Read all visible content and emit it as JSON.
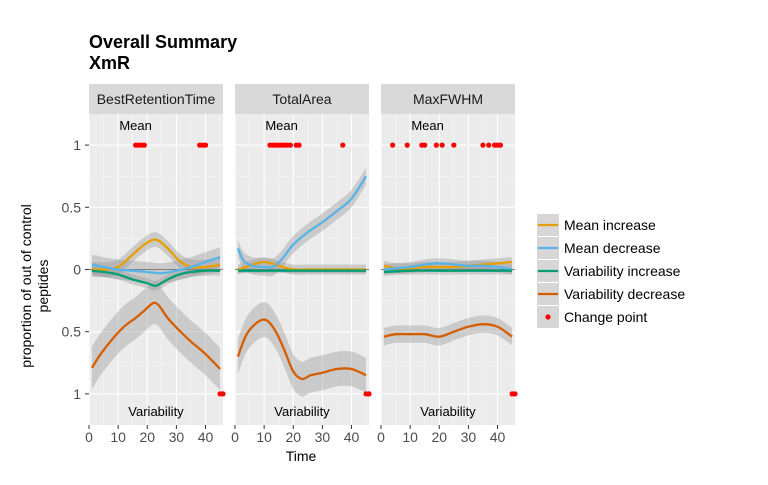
{
  "chart_data": {
    "type": "line",
    "title": "Overall Summary",
    "subtitle": "XmR",
    "xlabel": "Time",
    "ylabel_lines": [
      "proportion of out of control",
      "peptides"
    ],
    "xlim": [
      0,
      46
    ],
    "ylim": [
      -1.25,
      1.25
    ],
    "x_ticks": [
      0,
      10,
      20,
      30,
      40
    ],
    "y_ticks": [
      {
        "value": 1,
        "label": "1"
      },
      {
        "value": 0.5,
        "label": "0.5"
      },
      {
        "value": 0,
        "label": "0"
      },
      {
        "value": -0.5,
        "label": "0.5"
      },
      {
        "value": -1,
        "label": "1"
      }
    ],
    "annotations": {
      "top": "Mean",
      "bottom": "Variability"
    },
    "colors": {
      "Mean increase": "#E69F00",
      "Mean decrease": "#56B4E9",
      "Variability increase": "#009E73",
      "Variability decrease": "#D55E00",
      "Change point": "#FF0000"
    },
    "legend": {
      "position": "right",
      "entries": [
        "Mean increase",
        "Mean decrease",
        "Variability increase",
        "Variability decrease",
        "Change point"
      ]
    },
    "panels": [
      {
        "name": "BestRetentionTime",
        "series": [
          {
            "name": "Mean increase",
            "x": [
              1,
              5,
              10,
              15,
              19,
              23,
              27,
              31,
              35,
              40,
              45
            ],
            "y": [
              0.0,
              0.0,
              0.02,
              0.12,
              0.2,
              0.24,
              0.17,
              0.07,
              0.02,
              0.02,
              0.04
            ]
          },
          {
            "name": "Mean decrease",
            "x": [
              1,
              5,
              10,
              15,
              20,
              25,
              30,
              35,
              40,
              45
            ],
            "y": [
              0.04,
              0.02,
              0.0,
              -0.01,
              -0.02,
              -0.03,
              -0.01,
              0.02,
              0.06,
              0.1
            ]
          },
          {
            "name": "Variability increase",
            "x": [
              1,
              5,
              10,
              15,
              20,
              23,
              27,
              31,
              35,
              40,
              45
            ],
            "y": [
              -0.01,
              -0.02,
              -0.04,
              -0.08,
              -0.11,
              -0.13,
              -0.08,
              -0.04,
              -0.02,
              -0.01,
              -0.01
            ]
          },
          {
            "name": "Variability decrease",
            "x": [
              1,
              4,
              8,
              12,
              16,
              19,
              22,
              24,
              27,
              31,
              35,
              40,
              45
            ],
            "y": [
              -0.79,
              -0.68,
              -0.56,
              -0.46,
              -0.39,
              -0.33,
              -0.27,
              -0.29,
              -0.39,
              -0.49,
              -0.58,
              -0.68,
              -0.8
            ]
          }
        ],
        "band": {
          "Mean increase": 0.06,
          "Mean decrease": 0.08,
          "Variability increase": 0.04,
          "Variability decrease": 0.17
        },
        "change_points": {
          "top": [
            16,
            17,
            18,
            19,
            38,
            39,
            40
          ],
          "bottom": [
            45,
            46
          ]
        }
      },
      {
        "name": "TotalArea",
        "series": [
          {
            "name": "Mean increase",
            "x": [
              1,
              5,
              10,
              15,
              20,
              25,
              30,
              35,
              40,
              45
            ],
            "y": [
              0.0,
              0.03,
              0.06,
              0.03,
              0.0,
              0.0,
              0.0,
              0.0,
              0.0,
              0.0
            ]
          },
          {
            "name": "Mean decrease",
            "x": [
              1,
              3,
              6,
              10,
              13,
              16,
              20,
              25,
              30,
              35,
              40,
              45
            ],
            "y": [
              0.17,
              0.07,
              0.03,
              0.02,
              0.02,
              0.08,
              0.2,
              0.3,
              0.38,
              0.47,
              0.57,
              0.75
            ]
          },
          {
            "name": "Variability increase",
            "x": [
              1,
              10,
              20,
              30,
              40,
              45
            ],
            "y": [
              -0.01,
              -0.01,
              -0.01,
              -0.01,
              -0.01,
              -0.01
            ]
          },
          {
            "name": "Variability decrease",
            "x": [
              1,
              4,
              8,
              11,
              14,
              17,
              20,
              23,
              26,
              30,
              35,
              40,
              45
            ],
            "y": [
              -0.7,
              -0.52,
              -0.42,
              -0.41,
              -0.5,
              -0.65,
              -0.82,
              -0.88,
              -0.85,
              -0.83,
              -0.8,
              -0.8,
              -0.85
            ]
          }
        ],
        "band": {
          "Mean increase": 0.04,
          "Mean decrease": 0.07,
          "Variability increase": 0.02,
          "Variability decrease": 0.14
        },
        "change_points": {
          "top": [
            12,
            13,
            14,
            15,
            16,
            17,
            18,
            19,
            21,
            22,
            37
          ],
          "bottom": [
            45,
            46
          ]
        }
      },
      {
        "name": "MaxFWHM",
        "series": [
          {
            "name": "Mean increase",
            "x": [
              1,
              5,
              10,
              15,
              20,
              25,
              30,
              35,
              40,
              45
            ],
            "y": [
              0.03,
              0.01,
              0.01,
              0.02,
              0.02,
              0.02,
              0.03,
              0.04,
              0.05,
              0.06
            ]
          },
          {
            "name": "Mean decrease",
            "x": [
              1,
              5,
              10,
              15,
              20,
              25,
              30,
              35,
              40,
              45
            ],
            "y": [
              0.0,
              0.01,
              0.02,
              0.04,
              0.05,
              0.04,
              0.03,
              0.03,
              0.02,
              0.0
            ]
          },
          {
            "name": "Variability increase",
            "x": [
              1,
              10,
              20,
              30,
              40,
              45
            ],
            "y": [
              -0.02,
              -0.01,
              -0.01,
              -0.01,
              -0.01,
              -0.01
            ]
          },
          {
            "name": "Variability decrease",
            "x": [
              1,
              5,
              10,
              15,
              20,
              25,
              30,
              35,
              40,
              45
            ],
            "y": [
              -0.54,
              -0.52,
              -0.52,
              -0.52,
              -0.54,
              -0.5,
              -0.46,
              -0.44,
              -0.46,
              -0.54
            ]
          }
        ],
        "band": {
          "Mean increase": 0.04,
          "Mean decrease": 0.04,
          "Variability increase": 0.03,
          "Variability decrease": 0.07
        },
        "change_points": {
          "top": [
            4,
            9,
            14,
            15,
            19,
            21,
            25,
            35,
            37,
            39,
            40,
            41
          ],
          "bottom": [
            45,
            46
          ]
        }
      }
    ]
  }
}
